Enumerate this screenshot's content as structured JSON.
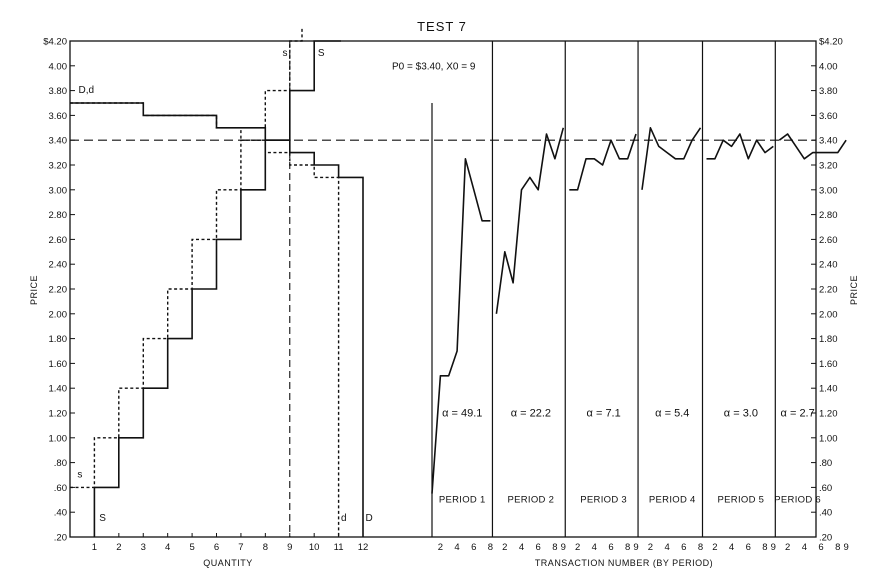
{
  "chart_data": {
    "type": "line",
    "title": "TEST 7",
    "ylabel": "PRICE",
    "ylim": [
      0.2,
      4.2
    ],
    "y_ticks": [
      {
        "value": 4.2,
        "label": "$4.20"
      },
      {
        "value": 4.0,
        "label": "4.00"
      },
      {
        "value": 3.8,
        "label": "3.80"
      },
      {
        "value": 3.6,
        "label": "3.60"
      },
      {
        "value": 3.4,
        "label": "3.40"
      },
      {
        "value": 3.2,
        "label": "3.20"
      },
      {
        "value": 3.0,
        "label": "3.00"
      },
      {
        "value": 2.8,
        "label": "2.80"
      },
      {
        "value": 2.6,
        "label": "2.60"
      },
      {
        "value": 2.4,
        "label": "2.40"
      },
      {
        "value": 2.2,
        "label": "2.20"
      },
      {
        "value": 2.0,
        "label": "2.00"
      },
      {
        "value": 1.8,
        "label": "1.80"
      },
      {
        "value": 1.6,
        "label": "1.60"
      },
      {
        "value": 1.4,
        "label": "1.40"
      },
      {
        "value": 1.2,
        "label": "1.20"
      },
      {
        "value": 1.0,
        "label": "1.00"
      },
      {
        "value": 0.8,
        "label": ".80"
      },
      {
        "value": 0.6,
        "label": ".60"
      },
      {
        "value": 0.4,
        "label": ".40"
      },
      {
        "value": 0.2,
        "label": ".20"
      }
    ],
    "equilibrium_price": 3.4,
    "equilibrium_quantity": 9,
    "equilibrium_label": "P0 = $3.40,  X0 = 9",
    "left_panel": {
      "xlabel": "QUANTITY",
      "xlim": [
        0,
        12.9
      ],
      "x_ticks": [
        "1",
        "2",
        "3",
        "4",
        "5",
        "6",
        "7",
        "8",
        "9",
        "10",
        "11",
        "12"
      ],
      "series": [
        {
          "name": "S",
          "style": "solid",
          "points": [
            [
              1,
              0.2
            ],
            [
              1,
              0.6
            ],
            [
              2,
              0.6
            ],
            [
              2,
              1.0
            ],
            [
              3,
              1.0
            ],
            [
              3,
              1.4
            ],
            [
              4,
              1.4
            ],
            [
              4,
              1.8
            ],
            [
              5,
              1.8
            ],
            [
              5,
              2.2
            ],
            [
              6,
              2.2
            ],
            [
              6,
              2.6
            ],
            [
              7,
              2.6
            ],
            [
              7,
              3.0
            ],
            [
              8,
              3.0
            ],
            [
              8,
              3.4
            ],
            [
              9,
              3.4
            ],
            [
              9,
              3.8
            ],
            [
              10,
              3.8
            ],
            [
              10,
              4.2
            ],
            [
              11.1,
              4.2
            ]
          ]
        },
        {
          "name": "s",
          "style": "dashed",
          "points": [
            [
              0,
              0.6
            ],
            [
              1,
              0.6
            ],
            [
              1,
              1.0
            ],
            [
              2,
              1.0
            ],
            [
              2,
              1.4
            ],
            [
              3,
              1.4
            ],
            [
              3,
              1.8
            ],
            [
              4,
              1.8
            ],
            [
              4,
              2.2
            ],
            [
              5,
              2.2
            ],
            [
              5,
              2.6
            ],
            [
              6,
              2.6
            ],
            [
              6,
              3.0
            ],
            [
              7,
              3.0
            ],
            [
              7,
              3.4
            ],
            [
              8,
              3.4
            ],
            [
              8,
              3.8
            ],
            [
              9,
              3.8
            ],
            [
              9,
              4.2
            ],
            [
              9.5,
              4.2
            ],
            [
              9.5,
              4.35
            ]
          ]
        },
        {
          "name": "D",
          "style": "solid",
          "points": [
            [
              0,
              3.7
            ],
            [
              3,
              3.7
            ],
            [
              3,
              3.6
            ],
            [
              6,
              3.6
            ],
            [
              6,
              3.5
            ],
            [
              8,
              3.5
            ],
            [
              8,
              3.4
            ],
            [
              9,
              3.4
            ],
            [
              9,
              3.3
            ],
            [
              10,
              3.3
            ],
            [
              10,
              3.2
            ],
            [
              11,
              3.2
            ],
            [
              11,
              3.1
            ],
            [
              12,
              3.1
            ],
            [
              12,
              0.2
            ]
          ]
        },
        {
          "name": "d",
          "style": "dashed",
          "points": [
            [
              0,
              3.7
            ],
            [
              3,
              3.7
            ],
            [
              3,
              3.6
            ],
            [
              6,
              3.6
            ],
            [
              6,
              3.5
            ],
            [
              7,
              3.5
            ],
            [
              7,
              3.4
            ],
            [
              8,
              3.4
            ],
            [
              8,
              3.3
            ],
            [
              9,
              3.3
            ],
            [
              9,
              3.2
            ],
            [
              10,
              3.2
            ],
            [
              10,
              3.1
            ],
            [
              11,
              3.1
            ],
            [
              11,
              0.2
            ]
          ]
        }
      ],
      "curve_labels": {
        "Dd": "D,d",
        "s_low": "s",
        "S_low": "S",
        "s_top": "s",
        "S_top": "S",
        "d_bottom": "d",
        "D_bottom": "D"
      },
      "equilibrium_quantity_line": 9
    },
    "right_panel": {
      "xlabel": "TRANSACTION NUMBER (BY PERIOD)",
      "periods": [
        {
          "name": "PERIOD 1",
          "alpha_label": "α = 49.1",
          "ticks": [
            "2",
            "4",
            "6",
            "8"
          ],
          "prices": [
            0.55,
            1.5,
            1.5,
            1.7,
            3.25,
            3.0,
            2.75,
            2.75
          ]
        },
        {
          "name": "PERIOD 2",
          "alpha_label": "α = 22.2",
          "ticks": [
            "2",
            "4",
            "6",
            "8",
            "9"
          ],
          "prices": [
            2.0,
            2.5,
            2.25,
            3.0,
            3.1,
            3.0,
            3.45,
            3.25,
            3.5
          ]
        },
        {
          "name": "PERIOD 3",
          "alpha_label": "α = 7.1",
          "ticks": [
            "2",
            "4",
            "6",
            "8",
            "9"
          ],
          "prices": [
            3.0,
            3.0,
            3.25,
            3.25,
            3.2,
            3.4,
            3.25,
            3.25,
            3.45
          ]
        },
        {
          "name": "PERIOD 4",
          "alpha_label": "α = 5.4",
          "ticks": [
            "2",
            "4",
            "6",
            "8"
          ],
          "prices": [
            3.0,
            3.5,
            3.35,
            3.3,
            3.25,
            3.25,
            3.4,
            3.5
          ]
        },
        {
          "name": "PERIOD 5",
          "alpha_label": "α = 3.0",
          "ticks": [
            "2",
            "4",
            "6",
            "8",
            "9"
          ],
          "prices": [
            3.25,
            3.25,
            3.4,
            3.35,
            3.45,
            3.25,
            3.4,
            3.3,
            3.35
          ]
        },
        {
          "name": "PERIOD 6",
          "alpha_label": "α = 2.7",
          "ticks": [
            "2",
            "4",
            "6",
            "8",
            "9"
          ],
          "prices": [
            3.4,
            3.45,
            3.35,
            3.25,
            3.3,
            3.3,
            3.3,
            3.3,
            3.4
          ]
        }
      ]
    }
  }
}
